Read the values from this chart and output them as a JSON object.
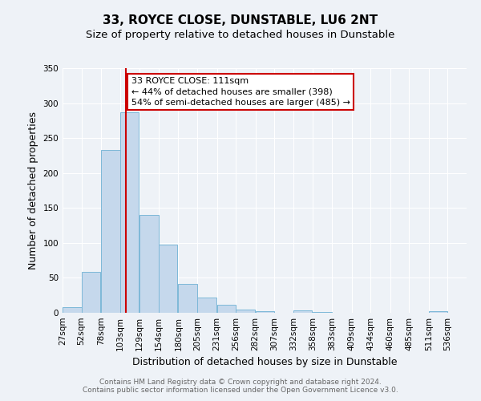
{
  "title": "33, ROYCE CLOSE, DUNSTABLE, LU6 2NT",
  "subtitle": "Size of property relative to detached houses in Dunstable",
  "xlabel": "Distribution of detached houses by size in Dunstable",
  "ylabel": "Number of detached properties",
  "bar_left_edges": [
    27,
    52,
    78,
    103,
    129,
    154,
    180,
    205,
    231,
    256,
    282,
    307,
    332,
    358,
    383,
    409,
    434,
    460,
    485,
    511
  ],
  "bar_heights": [
    8,
    58,
    233,
    287,
    140,
    98,
    41,
    22,
    12,
    5,
    2,
    0,
    3,
    1,
    0,
    0,
    0,
    0,
    0,
    2
  ],
  "bin_width": 25,
  "bar_color": "#c5d8ec",
  "bar_edge_color": "#7db8d8",
  "vline_x": 111,
  "vline_color": "#cc0000",
  "annotation_text": "33 ROYCE CLOSE: 111sqm\n← 44% of detached houses are smaller (398)\n54% of semi-detached houses are larger (485) →",
  "annotation_box_edge_color": "#cc0000",
  "annotation_box_face_color": "#ffffff",
  "ylim": [
    0,
    350
  ],
  "yticks": [
    0,
    50,
    100,
    150,
    200,
    250,
    300,
    350
  ],
  "x_tick_labels": [
    "27sqm",
    "52sqm",
    "78sqm",
    "103sqm",
    "129sqm",
    "154sqm",
    "180sqm",
    "205sqm",
    "231sqm",
    "256sqm",
    "282sqm",
    "307sqm",
    "332sqm",
    "358sqm",
    "383sqm",
    "409sqm",
    "434sqm",
    "460sqm",
    "485sqm",
    "511sqm",
    "536sqm"
  ],
  "x_tick_positions": [
    27,
    52,
    78,
    103,
    129,
    154,
    180,
    205,
    231,
    256,
    282,
    307,
    332,
    358,
    383,
    409,
    434,
    460,
    485,
    511,
    536
  ],
  "footer_line1": "Contains HM Land Registry data © Crown copyright and database right 2024.",
  "footer_line2": "Contains public sector information licensed under the Open Government Licence v3.0.",
  "background_color": "#eef2f7",
  "grid_color": "#ffffff",
  "title_fontsize": 11,
  "subtitle_fontsize": 9.5,
  "axis_label_fontsize": 9,
  "tick_fontsize": 7.5,
  "footer_fontsize": 6.5,
  "annotation_fontsize": 8
}
